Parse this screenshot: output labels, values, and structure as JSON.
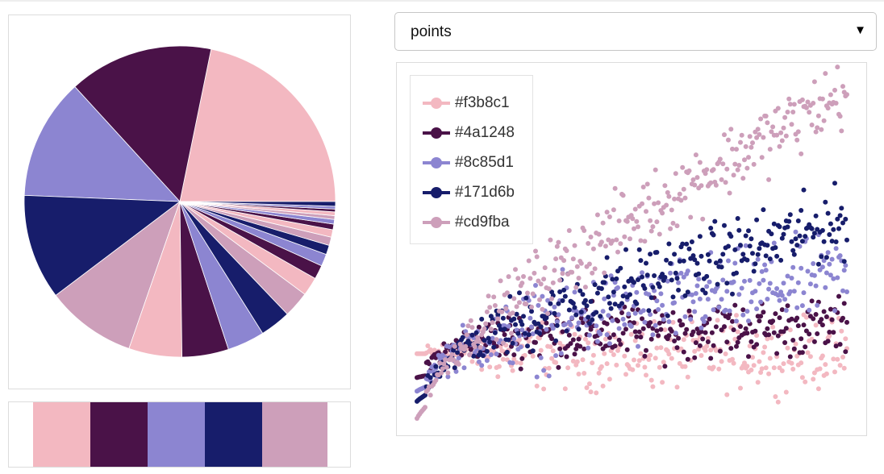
{
  "palette": [
    "#f3b8c1",
    "#4a1248",
    "#8c85d1",
    "#171d6b",
    "#cd9fba"
  ],
  "mode_select": {
    "label": "points",
    "arrow_icon": "triangle-down-icon"
  },
  "legend": {
    "items": [
      "#f3b8c1",
      "#4a1248",
      "#8c85d1",
      "#171d6b",
      "#cd9fba"
    ]
  },
  "chart_data": [
    {
      "type": "pie",
      "slices": [
        {
          "color": "#f3b8c1",
          "value": 22.5
        },
        {
          "color": "#4a1248",
          "value": 15.5
        },
        {
          "color": "#8c85d1",
          "value": 13.0
        },
        {
          "color": "#171d6b",
          "value": 11.3
        },
        {
          "color": "#cd9fba",
          "value": 9.7
        },
        {
          "color": "#f3b8c1",
          "value": 5.7
        },
        {
          "color": "#4a1248",
          "value": 5.0
        },
        {
          "color": "#8c85d1",
          "value": 4.0
        },
        {
          "color": "#171d6b",
          "value": 3.3
        },
        {
          "color": "#cd9fba",
          "value": 2.8
        },
        {
          "color": "#f3b8c1",
          "value": 2.0
        },
        {
          "color": "#4a1248",
          "value": 1.5
        },
        {
          "color": "#8c85d1",
          "value": 1.3
        },
        {
          "color": "#171d6b",
          "value": 1.0
        },
        {
          "color": "#cd9fba",
          "value": 0.9
        },
        {
          "color": "#f3b8c1",
          "value": 0.8
        },
        {
          "color": "#4a1248",
          "value": 0.6
        },
        {
          "color": "#8c85d1",
          "value": 0.5
        },
        {
          "color": "#cd9fba",
          "value": 0.4
        },
        {
          "color": "#f3b8c1",
          "value": 0.4
        },
        {
          "color": "#4a1248",
          "value": 0.3
        },
        {
          "color": "#8c85d1",
          "value": 0.3
        },
        {
          "color": "#171d6b",
          "value": 0.5
        }
      ]
    },
    {
      "type": "scatter",
      "x_range": [
        0,
        100
      ],
      "y_range": [
        0,
        100
      ],
      "grid": false,
      "legend_position": "top-left",
      "series": [
        {
          "name": "#f3b8c1",
          "color": "#f3b8c1",
          "start": 19,
          "end": 19,
          "spread": 5
        },
        {
          "name": "#4a1248",
          "color": "#4a1248",
          "start": 12,
          "end": 27,
          "spread": 4
        },
        {
          "name": "#8c85d1",
          "color": "#8c85d1",
          "start": 8,
          "end": 42,
          "spread": 6
        },
        {
          "name": "#171d6b",
          "color": "#171d6b",
          "start": 5,
          "end": 58,
          "spread": 5
        },
        {
          "name": "#cd9fba",
          "color": "#cd9fba",
          "start": 0,
          "end": 96,
          "spread": 5
        }
      ]
    }
  ]
}
